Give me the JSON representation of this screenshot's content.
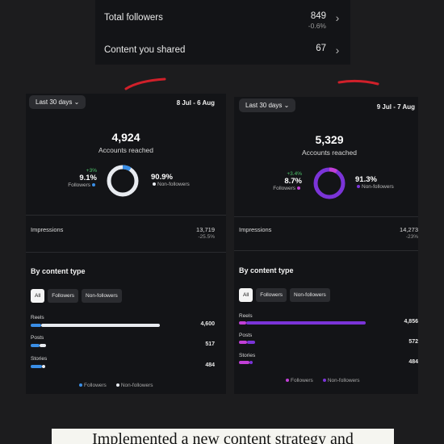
{
  "summary": {
    "total_followers_label": "Total followers",
    "total_followers_value": "849",
    "total_followers_change": "-0.6%",
    "content_shared_label": "Content you shared",
    "content_shared_value": "67"
  },
  "panels": [
    {
      "period_button": "Last 30 days",
      "date_range": "8 Jul - 6 Aug",
      "accounts_reached": "4,924",
      "accounts_reached_label": "Accounts reached",
      "followers_change": "+3%",
      "followers_pct": "9.1%",
      "followers_label": "Followers",
      "nonfollowers_pct": "90.9%",
      "nonfollowers_label": "Non-followers",
      "followers_fraction": 0.091,
      "impressions_label": "Impressions",
      "impressions_value": "13,719",
      "impressions_change": "-25.5%",
      "by_content_title": "By content type",
      "filters": [
        "All",
        "Followers",
        "Non-followers"
      ],
      "rows": [
        {
          "label": "Reels",
          "value": "4,600",
          "followers": 0.08,
          "nonfollowers": 0.92
        },
        {
          "label": "Posts",
          "value": "517",
          "followers": 0.6,
          "nonfollowers": 0.4
        },
        {
          "label": "Stories",
          "value": "484",
          "followers": 0.8,
          "nonfollowers": 0.2
        }
      ],
      "legend_followers": "Followers",
      "legend_nonfollowers": "Non-followers",
      "colors": {
        "followers": "#3a8ee6",
        "nonfollowers": "#e8ebf0",
        "ring_track": "#e8ebf0"
      }
    },
    {
      "period_button": "Last 30 days",
      "date_range": "9 Jul - 7 Aug",
      "accounts_reached": "5,329",
      "accounts_reached_label": "Accounts reached",
      "followers_change": "+3.4%",
      "followers_pct": "8.7%",
      "followers_label": "Followers",
      "nonfollowers_pct": "91.3%",
      "nonfollowers_label": "Non-followers",
      "followers_fraction": 0.087,
      "impressions_label": "Impressions",
      "impressions_value": "14,273",
      "impressions_change": "-23%",
      "by_content_title": "By content type",
      "filters": [
        "All",
        "Followers",
        "Non-followers"
      ],
      "rows": [
        {
          "label": "Reels",
          "value": "4,856",
          "followers": 0.06,
          "nonfollowers": 0.94
        },
        {
          "label": "Posts",
          "value": "572",
          "followers": 0.5,
          "nonfollowers": 0.5
        },
        {
          "label": "Stories",
          "value": "484",
          "followers": 0.75,
          "nonfollowers": 0.25
        }
      ],
      "legend_followers": "Followers",
      "legend_nonfollowers": "Non-followers",
      "colors": {
        "followers": "#c13fd6",
        "nonfollowers": "#7b34d8",
        "ring_track": "#7b34d8"
      }
    }
  ],
  "caption": "Implemented a new content strategy and",
  "accent": {
    "red": "#d0202a",
    "green": "#4ec36b"
  }
}
